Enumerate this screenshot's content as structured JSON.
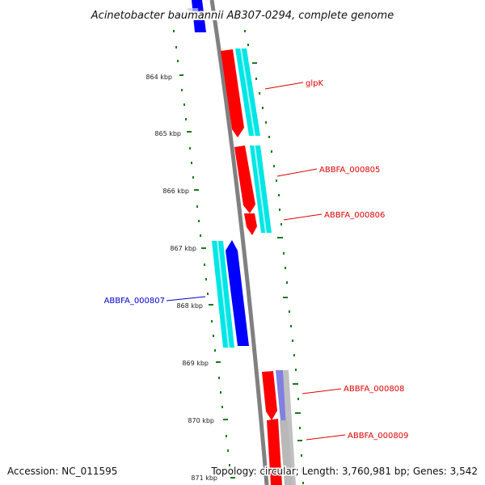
{
  "title": "Acinetobacter baumannii AB307-0294, complete genome",
  "ticks": [
    "864 kbp",
    "865 kbp",
    "866 kbp",
    "867 kbp",
    "868 kbp",
    "869 kbp",
    "870 kbp",
    "871 kbp"
  ],
  "genes": [
    {
      "label": "glpK",
      "color": "#dd0000"
    },
    {
      "label": "ABBFA_000805",
      "color": "#dd0000"
    },
    {
      "label": "ABBFA_000806",
      "color": "#dd0000"
    },
    {
      "label": "ABBFA_000807",
      "color": "#0000cc"
    },
    {
      "label": "ABBFA_000808",
      "color": "#dd0000"
    },
    {
      "label": "ABBFA_000809",
      "color": "#dd0000"
    }
  ],
  "footer": {
    "accession": "Accession: NC_011595",
    "topology": "Topology: circular; Length: 3,760,981 bp; Genes: 3,542"
  },
  "colors": {
    "forward_cds": "#ff0000",
    "reverse_cds": "#0000ff",
    "forward_rna": "#00e5e5",
    "backbone": "#808080",
    "gc_dots": "#1a7a1a"
  }
}
